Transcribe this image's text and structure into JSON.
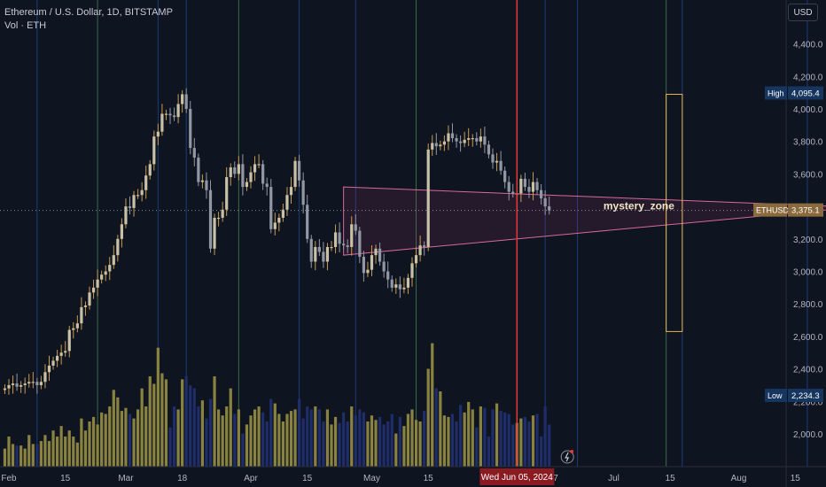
{
  "header": {
    "title": "Ethereum / U.S. Dollar, 1D, BITSTAMP",
    "subtitle": "Vol · ETH"
  },
  "currency_button": "USD",
  "badges": {
    "high_label": "High",
    "high_value": "4,095.4",
    "low_label": "Low",
    "low_value": "2,234.3",
    "symbol_label": "ETHUSD",
    "last_value": "3,375.1",
    "date_label": "Wed Jun 05, 2024"
  },
  "zone_label": "mystery_zone",
  "colors": {
    "bg": "#0f1421",
    "up": "#c8c1a6",
    "down": "#9298a3",
    "up_wick_tint": "#c99a4f",
    "vol_up": "#8a8340",
    "vol_down": "#1f2d6b",
    "accent_line": "#e53935",
    "triangle": "#d76a9a",
    "zone": "#e6b84a",
    "axis_text": "#b2b5be"
  },
  "chart_data": {
    "type": "candlestick",
    "title": "Ethereum / U.S. Dollar, 1D, BITSTAMP",
    "ylim": [
      1800,
      4600
    ],
    "y_ticks": [
      2000,
      2200,
      2400,
      2600,
      2800,
      3000,
      3200,
      3400,
      3600,
      3800,
      4000,
      4200,
      4400
    ],
    "y_tick_labels": [
      "2,000.0",
      "2,200.0",
      "2,400.0",
      "2,600.0",
      "2,800.0",
      "3,000.0",
      "3,200.0",
      "3,400.0",
      "3,600.0",
      "3,800.0",
      "4,000.0",
      "4,200.0",
      "4,400.0"
    ],
    "x_ticks": [
      {
        "day": 0,
        "label": "Feb"
      },
      {
        "day": 14,
        "label": "15"
      },
      {
        "day": 29,
        "label": "Mar"
      },
      {
        "day": 43,
        "label": "18"
      },
      {
        "day": 60,
        "label": "Apr"
      },
      {
        "day": 74,
        "label": "15"
      },
      {
        "day": 90,
        "label": "May"
      },
      {
        "day": 104,
        "label": "15"
      },
      {
        "day": 135,
        "label": "17"
      },
      {
        "day": 150,
        "label": "Jul"
      },
      {
        "day": 164,
        "label": "15"
      },
      {
        "day": 181,
        "label": "Aug"
      },
      {
        "day": 195,
        "label": "15"
      }
    ],
    "start_day_offset": -1,
    "closes": [
      2280,
      2300,
      2310,
      2290,
      2300,
      2310,
      2320,
      2320,
      2300,
      2320,
      2380,
      2420,
      2450,
      2480,
      2500,
      2510,
      2640,
      2650,
      2680,
      2780,
      2790,
      2870,
      2900,
      2950,
      2980,
      3000,
      3040,
      3100,
      3200,
      3290,
      3400,
      3390,
      3470,
      3470,
      3500,
      3590,
      3660,
      3830,
      3860,
      3970,
      3970,
      3960,
      3950,
      4030,
      4090,
      4000,
      3760,
      3700,
      3550,
      3560,
      3500,
      3140,
      3330,
      3330,
      3380,
      3580,
      3640,
      3600,
      3660,
      3520,
      3550,
      3610,
      3660,
      3660,
      3540,
      3520,
      3260,
      3300,
      3330,
      3380,
      3470,
      3520,
      3680,
      3560,
      3410,
      3200,
      3060,
      3150,
      3120,
      3060,
      3150,
      3150,
      3240,
      3170,
      3160,
      3150,
      3290,
      3250,
      3090,
      2990,
      3010,
      3100,
      3140,
      3060,
      3000,
      2950,
      2900,
      2920,
      2890,
      2900,
      2960,
      3050,
      3100,
      3160,
      3150,
      3750,
      3790,
      3770,
      3780,
      3800,
      3850,
      3820,
      3800,
      3790,
      3810,
      3820,
      3820,
      3800,
      3830,
      3780,
      3720,
      3670,
      3680,
      3620,
      3550,
      3490,
      3480,
      3480,
      3570,
      3520,
      3490,
      3550,
      3500,
      3450,
      3400,
      3375
    ],
    "volumes": [
      0.12,
      0.2,
      0.15,
      0.14,
      0.14,
      0.12,
      0.21,
      0.15,
      0.15,
      0.17,
      0.21,
      0.17,
      0.24,
      0.2,
      0.27,
      0.2,
      0.24,
      0.2,
      0.16,
      0.32,
      0.24,
      0.3,
      0.33,
      0.28,
      0.36,
      0.35,
      0.4,
      0.51,
      0.46,
      0.37,
      0.39,
      0.35,
      0.32,
      0.38,
      0.52,
      0.4,
      0.6,
      0.55,
      0.79,
      0.62,
      0.58,
      0.26,
      0.4,
      0.38,
      0.58,
      0.6,
      0.54,
      0.52,
      0.4,
      0.44,
      0.32,
      0.45,
      0.6,
      0.38,
      0.34,
      0.4,
      0.52,
      0.35,
      0.38,
      0.22,
      0.28,
      0.34,
      0.38,
      0.4,
      0.36,
      0.3,
      0.45,
      0.42,
      0.35,
      0.3,
      0.35,
      0.37,
      0.38,
      0.45,
      0.32,
      0.4,
      0.38,
      0.4,
      0.38,
      0.3,
      0.38,
      0.28,
      0.33,
      0.29,
      0.36,
      0.3,
      0.4,
      0.34,
      0.38,
      0.36,
      0.3,
      0.34,
      0.31,
      0.33,
      0.28,
      0.3,
      0.35,
      0.22,
      0.33,
      0.27,
      0.35,
      0.38,
      0.31,
      0.3,
      0.37,
      0.65,
      0.82,
      0.52,
      0.5,
      0.34,
      0.33,
      0.35,
      0.3,
      0.41,
      0.36,
      0.43,
      0.38,
      0.26,
      0.4,
      0.39,
      0.2,
      0.38,
      0.42,
      0.37,
      0.36,
      0.35,
      0.28,
      0.29,
      0.32,
      0.33,
      0.3,
      0.34,
      0.35,
      0.2,
      0.4,
      0.28
    ],
    "triangle": {
      "apex_day": 210,
      "apex_price": 3395,
      "upper_day": 83,
      "upper_price": 3520,
      "lower_day": 83,
      "lower_price": 3100
    },
    "zone": {
      "start_day": 163,
      "end_day": 167,
      "top_price": 4090,
      "bottom_price": 2630
    },
    "date_marker_day": 126,
    "vertical_line_days": [
      7,
      22,
      37,
      44,
      57,
      72,
      86,
      101,
      133,
      141,
      163,
      167,
      198
    ],
    "high": 4095.4,
    "low": 2234.3,
    "last": 3375.1
  }
}
